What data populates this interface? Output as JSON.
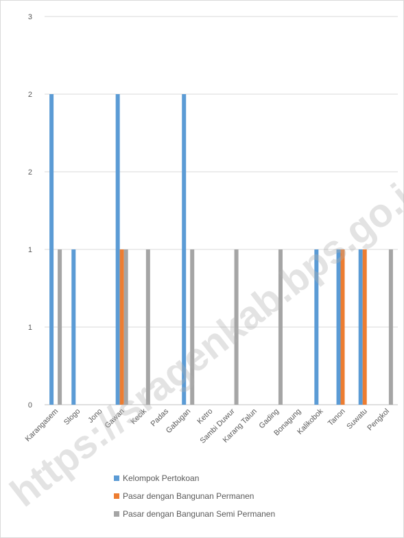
{
  "chart_data": {
    "type": "bar",
    "title": "",
    "xlabel": "",
    "ylabel": "",
    "ylim": [
      0,
      3
    ],
    "yticks": [
      {
        "value": 0,
        "label": "0"
      },
      {
        "value": 0.5,
        "label": "1"
      },
      {
        "value": 1,
        "label": "1"
      },
      {
        "value": 1.5,
        "label": "2"
      },
      {
        "value": 2,
        "label": "2"
      },
      {
        "value": 2.5,
        "label": "3"
      }
    ],
    "grid": true,
    "legend_position": "bottom",
    "categories": [
      "Karangasem",
      "Slogo",
      "Jono",
      "Gawan",
      "Kecik",
      "Padas",
      "Gabugan",
      "Ketro",
      "Sambi Duwur",
      "Karang Talun",
      "Gading",
      "Bonagung",
      "Kalikobok",
      "Tanon",
      "Suwatu",
      "Pengkol"
    ],
    "series": [
      {
        "name": "Kelompok Pertokoan",
        "color": "#5b9bd5",
        "values": [
          2,
          1,
          0,
          2,
          0,
          0,
          2,
          0,
          0,
          0,
          0,
          0,
          1,
          1,
          1,
          0
        ]
      },
      {
        "name": "Pasar dengan Bangunan Permanen",
        "color": "#ed7d31",
        "values": [
          0,
          0,
          0,
          1,
          0,
          0,
          0,
          0,
          0,
          0,
          0,
          0,
          0,
          1,
          1,
          0
        ]
      },
      {
        "name": "Pasar dengan Bangunan Semi Permanen",
        "color": "#a5a5a5",
        "values": [
          1,
          0,
          0,
          1,
          1,
          0,
          1,
          0,
          1,
          0,
          1,
          0,
          0,
          0,
          0,
          1
        ]
      }
    ]
  },
  "watermark": {
    "text": "https://sragenkab.bps.go.id",
    "color": "#b0b0b0"
  }
}
